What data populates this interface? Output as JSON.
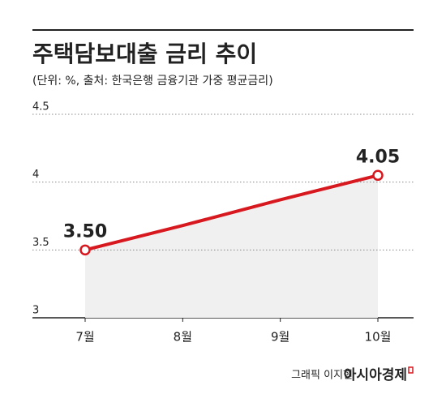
{
  "chart_data": {
    "type": "line",
    "title": "주택담보대출 금리 추이",
    "subtitle": "(단위: %, 출처: 한국은행 금융기관 가중 평균금리)",
    "categories": [
      "7월",
      "8월",
      "9월",
      "10월"
    ],
    "series": [
      {
        "name": "주택담보대출 금리",
        "color": "#d7191f",
        "values": [
          3.5,
          3.68,
          3.87,
          4.05
        ],
        "value_labels": [
          "3.50",
          null,
          null,
          "4.05"
        ]
      }
    ],
    "ylim": [
      3,
      4.5
    ],
    "yticks": [
      3,
      3.5,
      4,
      4.5
    ],
    "grid": true,
    "credit": "그래픽 이지현",
    "brand": "아시아경제"
  }
}
